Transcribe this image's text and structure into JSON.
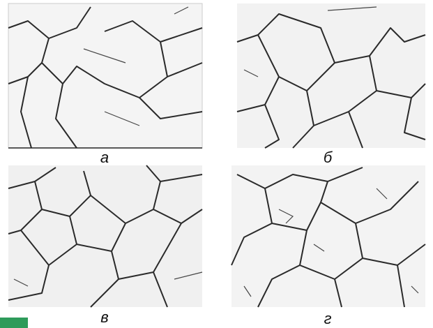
{
  "panels": [
    {
      "label": "а"
    },
    {
      "label": "б"
    },
    {
      "label": "в"
    },
    {
      "label": "г"
    }
  ]
}
